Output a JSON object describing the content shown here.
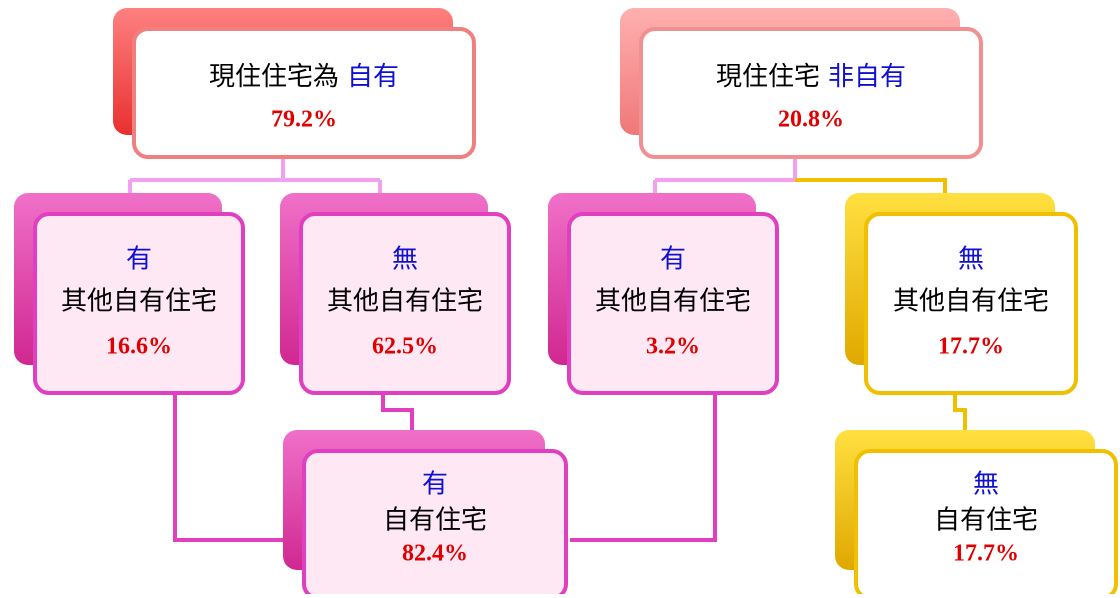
{
  "nodes": [
    {
      "label": "現住住宅為",
      "highlight": "自有",
      "value": "79.2%"
    },
    {
      "label": "現住住宅",
      "highlight": "非自有",
      "value": "20.8%"
    },
    {
      "highlight": "有",
      "label": "其他自有住宅",
      "value": "16.6%"
    },
    {
      "highlight": "無",
      "label": "其他自有住宅",
      "value": "62.5%"
    },
    {
      "highlight": "有",
      "label": "其他自有住宅",
      "value": "3.2%"
    },
    {
      "highlight": "無",
      "label": "其他自有住宅",
      "value": "17.7%"
    },
    {
      "highlight": "有",
      "label": "自有住宅",
      "value": "82.4%"
    },
    {
      "highlight": "無",
      "label": "自有住宅",
      "value": "17.7%"
    }
  ]
}
